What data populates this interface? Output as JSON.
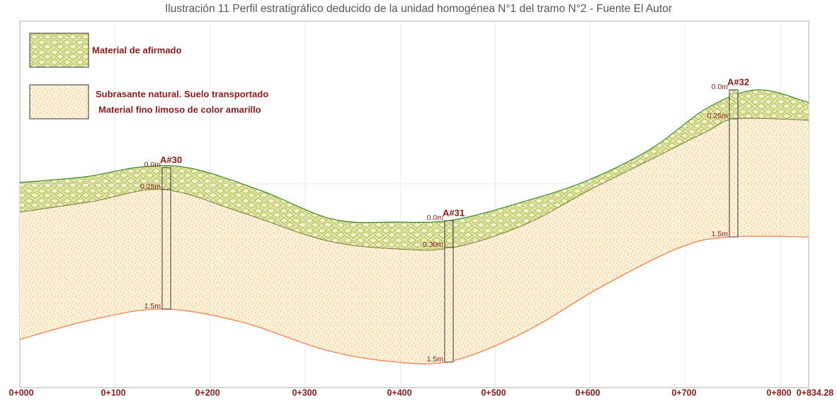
{
  "title": "Ilustración 11 Perfil estratigráfico deducido de la unidad homogénea N°1 del tramo N°2 - Fuente El Autor",
  "legend": [
    {
      "lines": [
        "Material de afirmado"
      ]
    },
    {
      "lines": [
        "Subrasante natural.  Suelo transportado",
        "Material fino limoso  de color amarillo"
      ]
    }
  ],
  "boreholes": [
    {
      "name": "A#30",
      "depths": [
        "0.0m",
        "0.25m",
        "1.5m"
      ]
    },
    {
      "name": "A#31",
      "depths": [
        "0.0m",
        "0.30m",
        "1.5m"
      ]
    },
    {
      "name": "A#32",
      "depths": [
        "0.0m",
        "0.25m",
        "1.5m"
      ]
    }
  ],
  "stations": [
    "0+000",
    "0+100",
    "0+200",
    "0+300",
    "0+400",
    "0+500",
    "0+600",
    "0+700",
    "0+800",
    "0+834.28"
  ]
}
